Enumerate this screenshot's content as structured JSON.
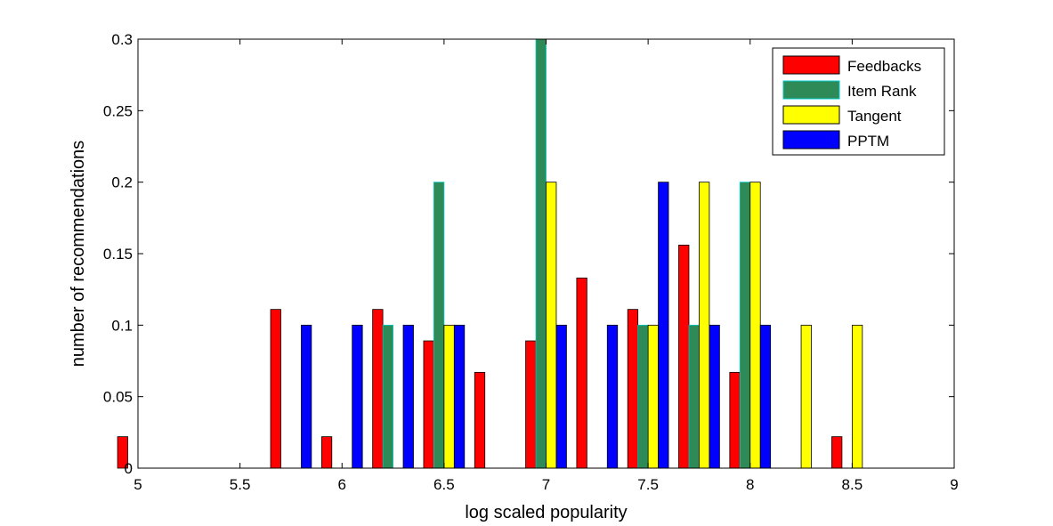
{
  "chart_data": {
    "type": "bar",
    "title": "",
    "xlabel": "log scaled popularity",
    "ylabel": "number of recommendations",
    "xlim": [
      5,
      9
    ],
    "ylim": [
      0,
      0.3
    ],
    "xticks": [
      "5",
      "5.5",
      "6",
      "6.5",
      "7",
      "7.5",
      "8",
      "8.5",
      "9"
    ],
    "yticks": [
      "0",
      "0.05",
      "0.1",
      "0.15",
      "0.2",
      "0.25",
      "0.3"
    ],
    "grid": false,
    "legend_position": "top-right",
    "bin_centers": [
      5.0,
      5.25,
      5.5,
      5.75,
      6.0,
      6.25,
      6.5,
      6.75,
      7.0,
      7.25,
      7.5,
      7.75,
      8.0,
      8.25,
      8.5,
      8.75,
      9.0
    ],
    "series": [
      {
        "name": "Feedbacks",
        "color": "#ff0000",
        "values": [
          0.022,
          0,
          0,
          0.111,
          0.022,
          0.111,
          0.089,
          0.067,
          0.089,
          0.133,
          0.111,
          0.156,
          0.067,
          0,
          0.022,
          0,
          0
        ]
      },
      {
        "name": "Item Rank",
        "color": "#2e8b57",
        "values": [
          0,
          0,
          0,
          0,
          0,
          0.1,
          0.2,
          0,
          0.3,
          0,
          0.1,
          0.1,
          0.2,
          0,
          0,
          0,
          0
        ]
      },
      {
        "name": "Tangent",
        "color": "#ffff00",
        "values": [
          0,
          0,
          0,
          0,
          0,
          0,
          0.1,
          0,
          0.2,
          0,
          0.1,
          0.2,
          0.2,
          0.1,
          0.1,
          0,
          0
        ]
      },
      {
        "name": "PPTM",
        "color": "#0000ff",
        "values": [
          0,
          0,
          0,
          0.1,
          0.1,
          0.1,
          0.1,
          0,
          0.1,
          0.1,
          0.2,
          0.1,
          0.1,
          0,
          0,
          0,
          0
        ]
      }
    ]
  }
}
